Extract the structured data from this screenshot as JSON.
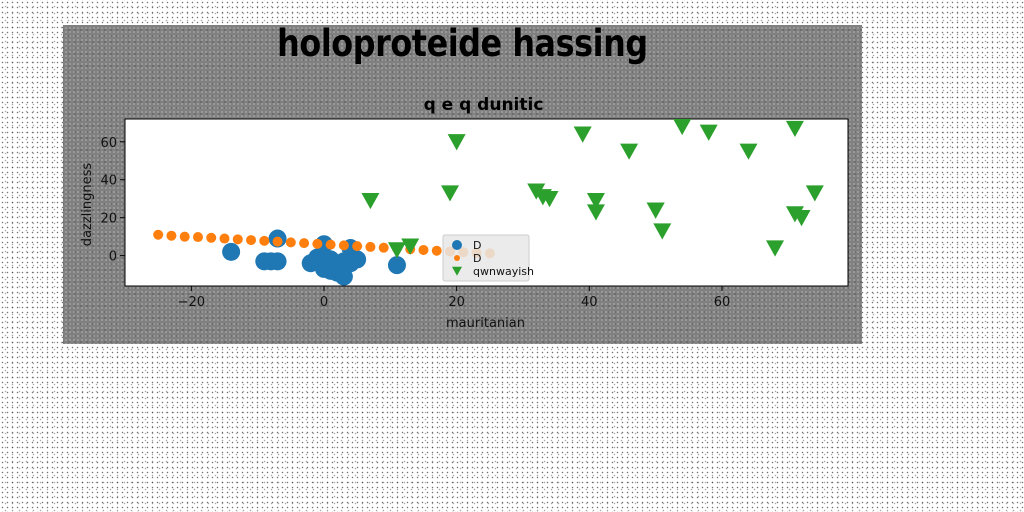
{
  "suptitle": "holoproteide hassing",
  "chart_data": {
    "type": "scatter",
    "title": "q e q dunitic",
    "xlabel": "mauritanian",
    "ylabel": "dazzlingness",
    "xlim": [
      -30,
      79
    ],
    "ylim": [
      -16,
      72
    ],
    "xticks": [
      -20,
      0,
      20,
      40,
      60
    ],
    "yticks": [
      0,
      20,
      40,
      60
    ],
    "legend_position": "lower center",
    "series": [
      {
        "name": "D",
        "color": "#1f77b4",
        "marker": "circle",
        "size": "large",
        "x": [
          -14,
          -9,
          -8,
          -7,
          -7,
          -2,
          -1,
          0,
          0,
          1,
          1,
          2,
          2,
          3,
          3,
          4,
          4,
          5,
          11
        ],
        "y": [
          2,
          -3,
          -3,
          -3,
          9,
          -4,
          -1,
          6,
          -7,
          -2,
          -8,
          -5,
          -9,
          -3,
          -11,
          4,
          -4,
          -2,
          -5
        ]
      },
      {
        "name": "D",
        "color": "#ff7f0e",
        "marker": "circle",
        "size": "small",
        "x": [
          -25,
          -23,
          -21,
          -19,
          -17,
          -15,
          -13,
          -11,
          -9,
          -7,
          -5,
          -3,
          -1,
          1,
          3,
          5,
          7,
          9,
          11,
          13,
          15,
          17,
          19,
          21,
          23,
          25
        ],
        "y": [
          11,
          10.5,
          10,
          9.8,
          9.4,
          9,
          8.6,
          8.2,
          7.8,
          7.4,
          7,
          6.6,
          6.2,
          5.8,
          5.4,
          5,
          4.6,
          4.2,
          3.8,
          3.4,
          3,
          2.6,
          2.2,
          1.8,
          1.5,
          1.2
        ]
      },
      {
        "name": "qwnwayish",
        "color": "#2ca02c",
        "marker": "triangle-down",
        "size": "large",
        "x": [
          7,
          11,
          13,
          19,
          20,
          32,
          33,
          34,
          39,
          41,
          41,
          46,
          50,
          50,
          51,
          54,
          58,
          64,
          68,
          71,
          71,
          72,
          74
        ],
        "y": [
          29,
          3,
          5,
          33,
          60,
          34,
          31,
          30,
          64,
          29,
          23,
          55,
          24,
          24,
          13,
          68,
          65,
          55,
          4,
          67,
          22,
          20,
          33
        ]
      }
    ]
  }
}
